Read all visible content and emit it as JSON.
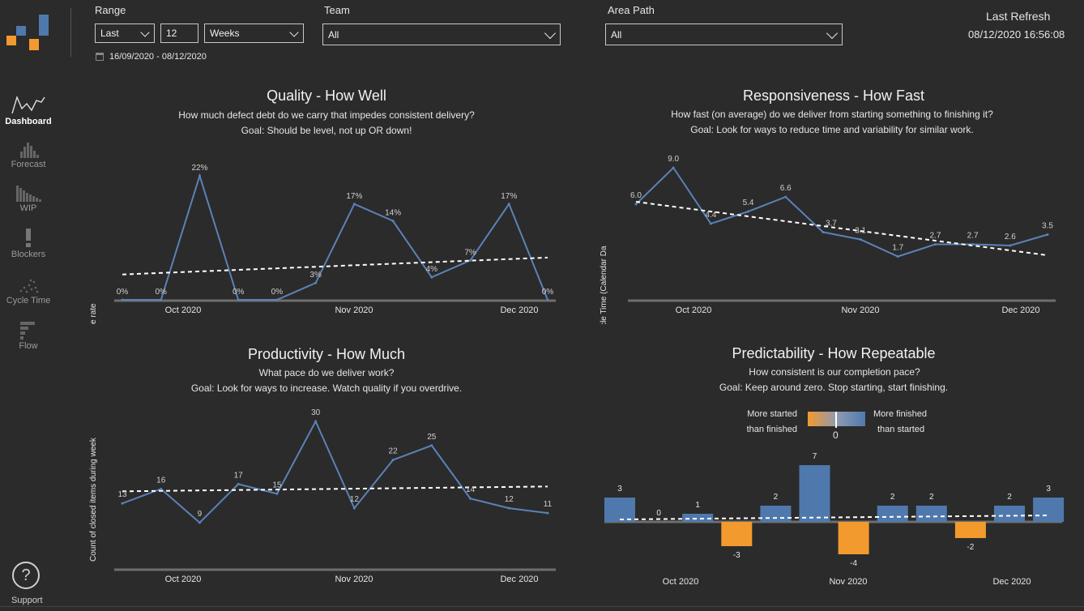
{
  "header": {
    "range_label": "Range",
    "range_mode": "Last",
    "range_count": "12",
    "range_unit": "Weeks",
    "date_range": "16/09/2020 - 08/12/2020",
    "team_label": "Team",
    "team_value": "All",
    "area_label": "Area Path",
    "area_value": "All",
    "refresh_label": "Last Refresh",
    "refresh_value": "08/12/2020 16:56:08"
  },
  "colors": {
    "accent_orange": "#f29a2e",
    "accent_blue": "#4f79ad",
    "line_blue": "#5b82b8"
  },
  "nav": [
    {
      "label": "Dashboard",
      "icon": "dashboard-line-icon"
    },
    {
      "label": "Forecast",
      "icon": "forecast-histogram-icon"
    },
    {
      "label": "WIP",
      "icon": "wip-bars-icon"
    },
    {
      "label": "Blockers",
      "icon": "blockers-exclamation-icon"
    },
    {
      "label": "Cycle Time",
      "icon": "cycle-time-scatter-icon"
    },
    {
      "label": "Flow",
      "icon": "flow-bars-icon"
    }
  ],
  "support_label": "Support",
  "panels": {
    "quality": {
      "title": "Quality - How Well",
      "sub1": "How much defect debt do we carry that impedes consistent delivery?",
      "sub2": "Goal: Should be level, not up OR down!"
    },
    "responsiveness": {
      "title": "Responsiveness - How Fast",
      "sub1": "How fast (on average) do we deliver from starting something to finishing it?",
      "sub2": "Goal: Look for ways to reduce time and variability for similar work."
    },
    "productivity": {
      "title": "Productivity - How Much",
      "sub1": "What pace do we deliver work?",
      "sub2": "Goal: Look for ways to increase. Watch quality if you overdrive."
    },
    "predictability": {
      "title": "Predictability - How Repeatable",
      "sub1": "How consistent is our completion pace?",
      "sub2": "Goal: Keep around zero. Stop starting, start finishing.",
      "legend_left_1": "More started",
      "legend_left_2": "than finished",
      "legend_right_1": "More finished",
      "legend_right_2": "than started",
      "legend_zero": "0"
    }
  },
  "chart_data": [
    {
      "id": "quality",
      "type": "line",
      "ylabel": "Bug percentage rate",
      "x_ticks": [
        "Oct 2020",
        "Nov 2020",
        "Dec 2020"
      ],
      "values": [
        0,
        0,
        22,
        0,
        0,
        3,
        17,
        14,
        4,
        7,
        17,
        0
      ],
      "labels": [
        "0%",
        "0%",
        "22%",
        "0%",
        "0%",
        "3%",
        "17%",
        "14%",
        "4%",
        "7%",
        "17%",
        "0%"
      ],
      "trend": [
        4.5,
        7.5
      ],
      "ylim": [
        0,
        22
      ]
    },
    {
      "id": "responsiveness",
      "type": "line",
      "ylabel": "Average Cycle Time (Calendar Da",
      "x_ticks": [
        "Oct 2020",
        "Nov 2020",
        "Dec 2020"
      ],
      "values": [
        6.0,
        9.0,
        4.4,
        5.4,
        6.6,
        3.7,
        3.1,
        1.7,
        2.7,
        2.7,
        2.6,
        3.5
      ],
      "labels": [
        "6.0",
        "9.0",
        "4.4",
        "5.4",
        "6.6",
        "3.7",
        "3.1",
        "1.7",
        "2.7",
        "2.7",
        "2.6",
        "3.5"
      ],
      "trend": [
        6.2,
        1.8
      ],
      "ylim": [
        0,
        9
      ]
    },
    {
      "id": "productivity",
      "type": "line",
      "ylabel": "Count of closed items during week",
      "x_ticks": [
        "Oct 2020",
        "Nov 2020",
        "Dec 2020"
      ],
      "values": [
        13,
        16,
        9,
        17,
        15,
        30,
        12,
        22,
        25,
        14,
        12,
        11
      ],
      "labels": [
        "13",
        "16",
        "9",
        "17",
        "15",
        "30",
        "12",
        "22",
        "25",
        "14",
        "12",
        "11"
      ],
      "trend": [
        15.5,
        16.5
      ],
      "ylim": [
        0,
        30
      ]
    },
    {
      "id": "predictability",
      "type": "bar",
      "x_ticks": [
        "Oct 2020",
        "Nov 2020",
        "Dec 2020"
      ],
      "values": [
        3,
        0,
        1,
        -3,
        2,
        7,
        -4,
        2,
        2,
        -2,
        2,
        3
      ],
      "labels": [
        "3",
        "0",
        "1",
        "-3",
        "2",
        "7",
        "-4",
        "2",
        "2",
        "-2",
        "2",
        "3"
      ],
      "trend": [
        0.3,
        0.8
      ],
      "ylim": [
        -4,
        7
      ]
    }
  ]
}
